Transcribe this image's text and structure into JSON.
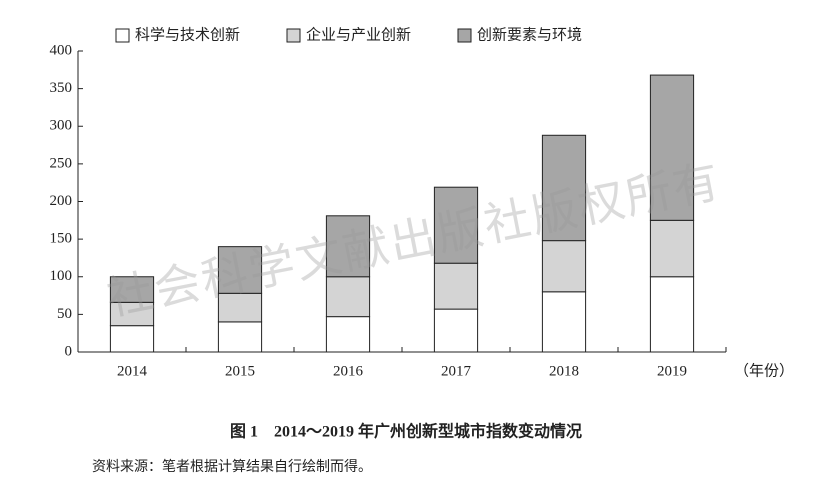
{
  "chart_data": {
    "type": "stacked_bar",
    "categories": [
      "2014",
      "2015",
      "2016",
      "2017",
      "2018",
      "2019"
    ],
    "series": [
      {
        "name": "科学与技术创新",
        "color": "#ffffff",
        "values": [
          35,
          40,
          47,
          57,
          80,
          100
        ]
      },
      {
        "name": "企业与产业创新",
        "color": "#d4d4d4",
        "values": [
          31,
          38,
          53,
          61,
          68,
          75
        ]
      },
      {
        "name": "创新要素与环境",
        "color": "#a6a6a6",
        "values": [
          34,
          62,
          81,
          101,
          140,
          193
        ]
      }
    ],
    "ylim": [
      0,
      400
    ],
    "yticks": [
      0,
      50,
      100,
      150,
      200,
      250,
      300,
      350,
      400
    ],
    "x_label": "（年份）",
    "caption": "图 1　2014～2019 年广州创新型城市指数变动情况",
    "source": "资料来源：笔者根据计算结果自行绘制而得。",
    "watermark": "社会科学文献出版社版权所有",
    "grid": false,
    "legend": "top"
  }
}
